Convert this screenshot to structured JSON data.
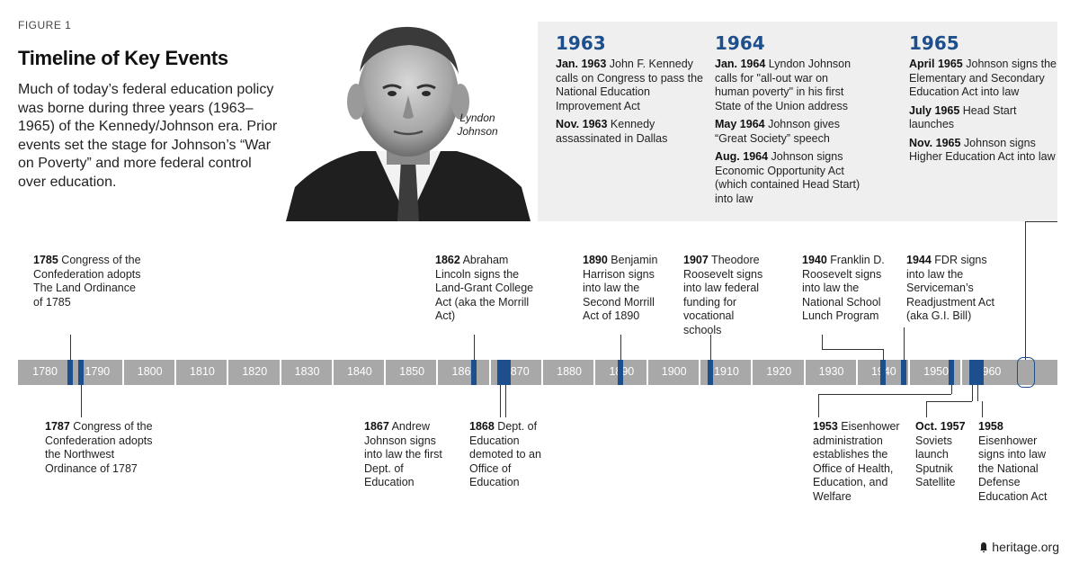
{
  "figure_label": "FIGURE 1",
  "title": "Timeline of Key Events",
  "intro": "Much of today’s federal education policy was borne during three years (1963–1965) of the Kennedy/Johnson era. Prior events set the stage for Johnson’s “War on Poverty” and more federal control over education.",
  "portrait_caption": "Lyndon Johnson",
  "highlight_years": [
    {
      "year": "1963",
      "events": [
        {
          "date": "Jan. 1963",
          "text": " John F. Kennedy calls on Congress to pass the National Education Improvement Act"
        },
        {
          "date": "Nov. 1963",
          "text": " Kennedy assassinated in Dallas"
        }
      ]
    },
    {
      "year": "1964",
      "events": [
        {
          "date": "Jan. 1964",
          "text": " Lyndon Johnson calls for \"all-out war on human poverty\" in his first State of the Union address"
        },
        {
          "date": "May 1964",
          "text": " Johnson gives “Great Society” speech"
        },
        {
          "date": "Aug. 1964",
          "text": " Johnson signs Economic Opportunity Act (which contained Head Start) into law"
        }
      ]
    },
    {
      "year": "1965",
      "events": [
        {
          "date": "April 1965",
          "text": " Johnson signs the Elementary and Secondary Education Act into law"
        },
        {
          "date": "July 1965",
          "text": " Head Start launches"
        },
        {
          "date": "Nov. 1965",
          "text": " Johnson signs Higher Education Act into law"
        }
      ]
    }
  ],
  "axis_ticks": [
    "1780",
    "1790",
    "1800",
    "1810",
    "1820",
    "1830",
    "1840",
    "1850",
    "1860",
    "1870",
    "1880",
    "1890",
    "1900",
    "1910",
    "1920",
    "1930",
    "1940",
    "1950",
    "1960"
  ],
  "events_above": [
    {
      "year": 1785,
      "date": "1785",
      "text": " Congress of the Confederation adopts The Land Ordinance of 1785"
    },
    {
      "year": 1862,
      "date": "1862",
      "text": " Abraham Lincoln signs the Land-Grant College Act (aka the Morrill Act)"
    },
    {
      "year": 1890,
      "date": "1890",
      "text": " Benjamin Harrison signs into law the Second Morrill Act of 1890"
    },
    {
      "year": 1907,
      "date": "1907",
      "text": " Theodore Roosevelt signs into law federal funding for vocational schools"
    },
    {
      "year": 1940,
      "date": "1940",
      "text": " Franklin D. Roosevelt signs into law the National School Lunch Program"
    },
    {
      "year": 1944,
      "date": "1944",
      "text": " FDR signs into law the Serviceman’s Readjustment Act (aka G.I. Bill)"
    }
  ],
  "events_below": [
    {
      "year": 1787,
      "date": "1787",
      "text": " Congress of the Confederation adopts the Northwest Ordinance of 1787"
    },
    {
      "year": 1867,
      "date": "1867",
      "text": " Andrew Johnson signs into law the first Dept. of Education"
    },
    {
      "year": 1868,
      "date": "1868",
      "text": " Dept. of Education demoted to an Office of Education"
    },
    {
      "year": 1953,
      "date": "1953",
      "text": " Eisenhower administration establishes the Office of Health, Education, and Welfare"
    },
    {
      "year": 1957,
      "date": "Oct. 1957",
      "text": " Soviets launch Sputnik Satellite"
    },
    {
      "year": 1958,
      "date": "1958",
      "text": " Eisenhower signs into law the National Defense Education Act"
    }
  ],
  "footer": "heritage.org",
  "colors": {
    "accent": "#1d4f8c",
    "axis": "#a8a8a8",
    "panel": "#efefef"
  }
}
